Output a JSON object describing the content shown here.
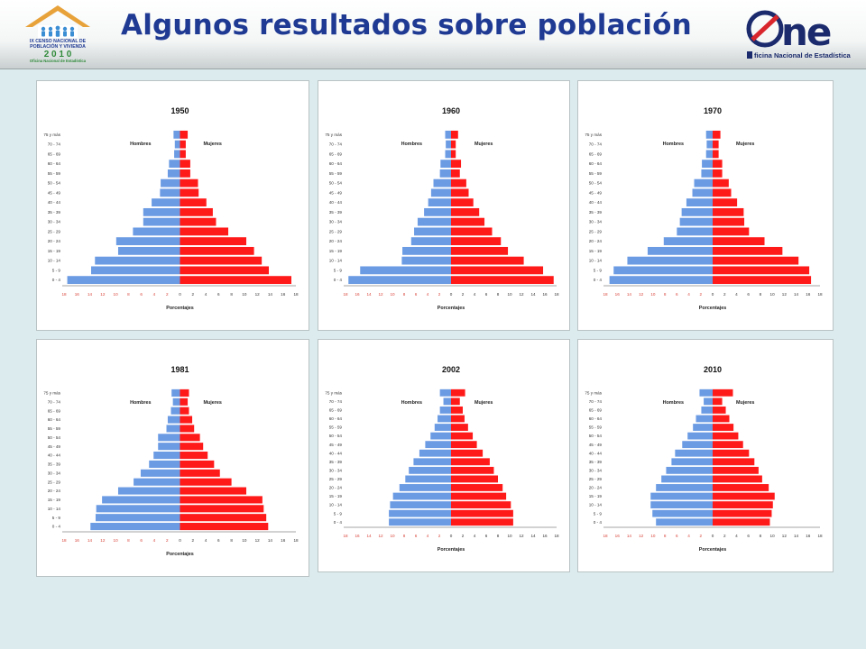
{
  "header": {
    "title": "Algunos resultados sobre población",
    "census_logo": {
      "line1": "IX CENSO NACIONAL DE",
      "line2": "POBLACIÓN Y VIVIENDA",
      "year": "2 0 1 0",
      "line3": "Oficina Nacional de Estadística"
    },
    "one_logo": {
      "mark": "ne",
      "caption": "ficina Nacional de Estadística"
    }
  },
  "colors": {
    "male": "#6b9be3",
    "female": "#ff1a1a",
    "title": "#1f3a93",
    "background": "#dcecee"
  },
  "chart_data": [
    {
      "type": "bar",
      "orientation": "horizontal-population-pyramid",
      "title": "1950",
      "xlabel": "Porcentajes",
      "categories": [
        "0 - 4",
        "5 - 9",
        "10 - 14",
        "15 - 19",
        "20 - 24",
        "25 - 29",
        "30 - 34",
        "35 - 39",
        "40 - 44",
        "45 - 49",
        "50 - 54",
        "55 - 59",
        "60 - 64",
        "65 - 69",
        "70 - 74",
        "75 y más"
      ],
      "series": [
        {
          "name": "Hombres",
          "values": [
            17.5,
            13.8,
            13.2,
            9.6,
            9.9,
            7.3,
            5.7,
            5.7,
            4.4,
            3.1,
            3.0,
            1.9,
            1.7,
            0.9,
            0.8,
            1.0
          ]
        },
        {
          "name": "Mujeres",
          "values": [
            17.3,
            13.8,
            12.7,
            11.5,
            10.3,
            7.5,
            5.6,
            5.1,
            4.1,
            2.9,
            2.8,
            1.6,
            1.6,
            0.9,
            0.9,
            1.2
          ]
        }
      ],
      "xlim": [
        -18,
        18
      ],
      "xticks": [
        18,
        16,
        14,
        12,
        10,
        8,
        6,
        4,
        2,
        0,
        2,
        4,
        6,
        8,
        10,
        12,
        14,
        16,
        18
      ]
    },
    {
      "type": "bar",
      "orientation": "horizontal-population-pyramid",
      "title": "1960",
      "xlabel": "Porcentajes",
      "categories": [
        "0 - 4",
        "5 - 9",
        "10 - 14",
        "15 - 19",
        "20 - 24",
        "25 - 29",
        "30 - 34",
        "35 - 39",
        "40 - 44",
        "45 - 49",
        "50 - 54",
        "55 - 59",
        "60 - 64",
        "65 - 69",
        "70 - 74",
        "75 y más"
      ],
      "series": [
        {
          "name": "Hombres",
          "values": [
            17.5,
            15.5,
            8.4,
            8.3,
            6.8,
            6.3,
            5.7,
            4.6,
            3.9,
            3.4,
            3.0,
            1.9,
            1.8,
            1.0,
            0.9,
            1.0
          ]
        },
        {
          "name": "Mujeres",
          "values": [
            17.5,
            15.7,
            12.4,
            9.7,
            8.5,
            7.0,
            5.7,
            4.8,
            3.8,
            3.0,
            2.6,
            1.5,
            1.7,
            0.8,
            0.8,
            1.2
          ]
        }
      ],
      "xlim": [
        -18,
        18
      ],
      "xticks": [
        18,
        16,
        14,
        12,
        10,
        8,
        6,
        4,
        2,
        0,
        2,
        4,
        6,
        8,
        10,
        12,
        14,
        16,
        18
      ]
    },
    {
      "type": "bar",
      "orientation": "horizontal-population-pyramid",
      "title": "1970",
      "xlabel": "Porcentajes",
      "categories": [
        "0 - 4",
        "5 - 9",
        "10 - 14",
        "15 - 19",
        "20 - 24",
        "25 - 29",
        "30 - 34",
        "35 - 39",
        "40 - 44",
        "45 - 49",
        "50 - 54",
        "55 - 59",
        "60 - 64",
        "65 - 69",
        "70 - 74",
        "75 y más"
      ],
      "series": [
        {
          "name": "Hombres",
          "values": [
            17.3,
            16.6,
            14.3,
            10.9,
            8.2,
            6.0,
            5.5,
            5.2,
            4.4,
            3.4,
            3.1,
            1.9,
            1.8,
            1.1,
            1.0,
            1.1
          ]
        },
        {
          "name": "Mujeres",
          "values": [
            16.5,
            16.2,
            14.4,
            11.7,
            8.7,
            6.1,
            5.3,
            5.2,
            4.1,
            3.1,
            2.7,
            1.6,
            1.6,
            1.0,
            1.0,
            1.3
          ]
        }
      ],
      "xlim": [
        -18,
        18
      ],
      "xticks": [
        18,
        16,
        14,
        12,
        10,
        8,
        6,
        4,
        2,
        0,
        2,
        4,
        6,
        8,
        10,
        12,
        14,
        16,
        18
      ]
    },
    {
      "type": "bar",
      "orientation": "horizontal-population-pyramid",
      "title": "1981",
      "xlabel": "Porcentajes",
      "categories": [
        "0 - 4",
        "5 - 9",
        "10 - 14",
        "15 - 19",
        "20 - 24",
        "25 - 29",
        "30 - 34",
        "35 - 39",
        "40 - 44",
        "45 - 49",
        "50 - 54",
        "55 - 59",
        "60 - 64",
        "65 - 69",
        "70 - 74",
        "75 y más"
      ],
      "series": [
        {
          "name": "Hombres",
          "values": [
            13.9,
            13.1,
            13.0,
            12.1,
            9.6,
            7.2,
            6.1,
            4.8,
            4.1,
            3.4,
            3.4,
            2.1,
            1.9,
            1.4,
            1.1,
            1.3
          ]
        },
        {
          "name": "Mujeres",
          "values": [
            13.7,
            13.4,
            13.0,
            12.8,
            10.3,
            8.0,
            6.2,
            5.3,
            4.3,
            3.6,
            3.1,
            2.2,
            1.9,
            1.4,
            1.2,
            1.4
          ]
        }
      ],
      "xlim": [
        -18,
        18
      ],
      "xticks": [
        18,
        16,
        14,
        12,
        10,
        8,
        6,
        4,
        2,
        0,
        2,
        4,
        6,
        8,
        10,
        12,
        14,
        16,
        18
      ]
    },
    {
      "type": "bar",
      "orientation": "horizontal-population-pyramid",
      "title": "2002",
      "xlabel": "Porcentajes",
      "categories": [
        "0 - 4",
        "5 - 9",
        "10 - 14",
        "15 - 19",
        "20 - 24",
        "25 - 29",
        "30 - 34",
        "35 - 39",
        "40 - 44",
        "45 - 49",
        "50 - 54",
        "55 - 59",
        "60 - 64",
        "65 - 69",
        "70 - 74",
        "75 y más"
      ],
      "series": [
        {
          "name": "Hombres",
          "values": [
            10.6,
            10.6,
            10.4,
            9.9,
            8.8,
            7.8,
            7.2,
            6.4,
            5.4,
            4.4,
            3.5,
            2.8,
            2.3,
            1.9,
            1.3,
            1.9
          ]
        },
        {
          "name": "Mujeres",
          "values": [
            10.6,
            10.6,
            10.2,
            9.4,
            8.8,
            8.0,
            7.3,
            6.6,
            5.4,
            4.4,
            3.7,
            2.9,
            2.3,
            2.0,
            1.5,
            2.4
          ]
        }
      ],
      "xlim": [
        -18,
        18
      ],
      "xticks": [
        18,
        16,
        14,
        12,
        10,
        8,
        6,
        4,
        2,
        0,
        2,
        4,
        6,
        8,
        10,
        12,
        14,
        16,
        18
      ]
    },
    {
      "type": "bar",
      "orientation": "horizontal-population-pyramid",
      "title": "2010",
      "xlabel": "Porcentajes",
      "categories": [
        "0 - 4",
        "5 - 9",
        "10 - 14",
        "15 - 19",
        "20 - 24",
        "25 - 29",
        "30 - 34",
        "35 - 39",
        "40 - 44",
        "45 - 49",
        "50 - 54",
        "55 - 59",
        "60 - 64",
        "65 - 69",
        "70 - 74",
        "75 y más"
      ],
      "series": [
        {
          "name": "Hombres",
          "values": [
            9.5,
            10.1,
            10.4,
            10.4,
            9.5,
            8.6,
            7.8,
            6.9,
            6.3,
            5.1,
            4.2,
            3.3,
            2.8,
            1.9,
            1.5,
            2.2
          ]
        },
        {
          "name": "Mujeres",
          "values": [
            9.6,
            9.9,
            10.1,
            10.4,
            9.4,
            8.3,
            7.7,
            7.0,
            6.1,
            5.1,
            4.3,
            3.5,
            2.8,
            2.2,
            1.6,
            3.4
          ]
        }
      ],
      "xlim": [
        -18,
        18
      ],
      "xticks": [
        18,
        16,
        14,
        12,
        10,
        8,
        6,
        4,
        2,
        0,
        2,
        4,
        6,
        8,
        10,
        12,
        14,
        16,
        18
      ]
    }
  ]
}
